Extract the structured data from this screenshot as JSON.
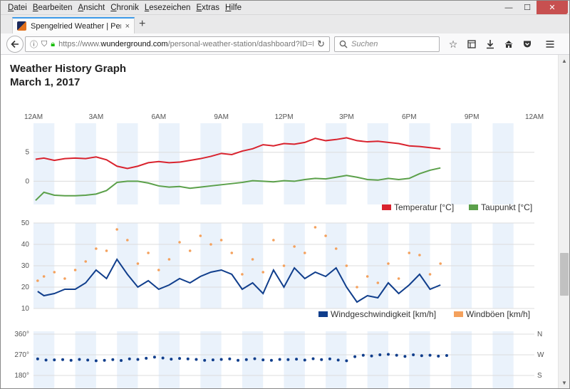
{
  "browser": {
    "menus": [
      "Datei",
      "Bearbeiten",
      "Ansicht",
      "Chronik",
      "Lesezeichen",
      "Extras",
      "Hilfe"
    ],
    "menu_underline": [
      "D",
      "B",
      "A",
      "C",
      "L",
      "E",
      "H"
    ],
    "window_controls": {
      "minimize": "—",
      "maximize": "☐",
      "close": "✕"
    },
    "tab_title": "Spengelried Weather | Pers",
    "tab_close": "×",
    "new_tab": "+",
    "url_prefix": "https://www.",
    "url_host": "wunderground.com",
    "url_path": "/personal-weather-station/dashboard?ID=IN",
    "search_placeholder": "Suchen"
  },
  "page": {
    "title": "Weather History Graph",
    "date": "March 1, 2017"
  },
  "chart_data": [
    {
      "type": "line",
      "x_ticks": [
        "12AM",
        "3AM",
        "6AM",
        "9AM",
        "12PM",
        "3PM",
        "6PM",
        "9PM",
        "12AM"
      ],
      "x_unit": "hours",
      "xlim": [
        0,
        24
      ],
      "ylim": [
        -4,
        10
      ],
      "y_ticks": [
        0,
        5
      ],
      "grid": true,
      "legend": "bottom-right",
      "series": [
        {
          "name": "Temperatur [°C]",
          "color": "#d9232e",
          "x": [
            0.1,
            0.5,
            1,
            1.5,
            2,
            2.5,
            3,
            3.5,
            4,
            4.5,
            5,
            5.5,
            6,
            6.5,
            7,
            7.5,
            8,
            8.5,
            9,
            9.5,
            10,
            10.5,
            11,
            11.5,
            12,
            12.5,
            13,
            13.5,
            14,
            14.5,
            15,
            15.5,
            16,
            16.5,
            17,
            17.5,
            18,
            18.5,
            19,
            19.5
          ],
          "values": [
            3.8,
            4.0,
            3.6,
            3.9,
            4.0,
            3.9,
            4.2,
            3.7,
            2.6,
            2.2,
            2.6,
            3.2,
            3.4,
            3.2,
            3.3,
            3.6,
            3.9,
            4.3,
            4.8,
            4.6,
            5.2,
            5.6,
            6.3,
            6.1,
            6.5,
            6.4,
            6.7,
            7.4,
            7.0,
            7.2,
            7.5,
            7.0,
            6.8,
            6.9,
            6.7,
            6.5,
            6.1,
            6.0,
            5.8,
            5.6
          ]
        },
        {
          "name": "Taupunkt [°C]",
          "color": "#5ba04a",
          "x": [
            0.1,
            0.5,
            1,
            1.5,
            2,
            2.5,
            3,
            3.5,
            4,
            4.5,
            5,
            5.5,
            6,
            6.5,
            7,
            7.5,
            8,
            8.5,
            9,
            9.5,
            10,
            10.5,
            11,
            11.5,
            12,
            12.5,
            13,
            13.5,
            14,
            14.5,
            15,
            15.5,
            16,
            16.5,
            17,
            17.5,
            18,
            18.5,
            19,
            19.5
          ],
          "values": [
            -3.3,
            -1.9,
            -2.4,
            -2.5,
            -2.5,
            -2.4,
            -2.2,
            -1.6,
            -0.2,
            0.0,
            0.0,
            -0.3,
            -0.8,
            -1.0,
            -0.9,
            -1.2,
            -1.0,
            -0.8,
            -0.6,
            -0.4,
            -0.2,
            0.1,
            0.0,
            -0.1,
            0.1,
            0.0,
            0.3,
            0.5,
            0.4,
            0.7,
            1.0,
            0.7,
            0.3,
            0.2,
            0.5,
            0.3,
            0.5,
            1.3,
            1.9,
            2.3
          ]
        }
      ]
    },
    {
      "type": "scatter",
      "x_ticks": [
        "12AM",
        "3AM",
        "6AM",
        "9AM",
        "12PM",
        "3PM",
        "6PM",
        "9PM",
        "12AM"
      ],
      "xlim": [
        0,
        24
      ],
      "ylim": [
        10,
        50
      ],
      "y_ticks": [
        10,
        20,
        30,
        40,
        50
      ],
      "grid": true,
      "legend": "bottom-right",
      "series": [
        {
          "name": "Windgeschwindigkeit [km/h]",
          "color": "#103e8c",
          "style": "line",
          "x": [
            0.2,
            0.5,
            1,
            1.5,
            2,
            2.5,
            3,
            3.5,
            4,
            4.5,
            5,
            5.5,
            6,
            6.5,
            7,
            7.5,
            8,
            8.5,
            9,
            9.5,
            10,
            10.5,
            11,
            11.5,
            12,
            12.5,
            13,
            13.5,
            14,
            14.5,
            15,
            15.5,
            16,
            16.5,
            17,
            17.5,
            18,
            18.5,
            19,
            19.5
          ],
          "values": [
            18,
            16,
            17,
            19,
            19,
            22,
            28,
            24,
            33,
            26,
            20,
            23,
            19,
            21,
            24,
            22,
            25,
            27,
            28,
            26,
            19,
            22,
            17,
            28,
            20,
            29,
            24,
            27,
            25,
            29,
            20,
            13,
            16,
            15,
            22,
            17,
            21,
            26,
            19,
            21
          ]
        },
        {
          "name": "Windböen [km/h]",
          "color": "#f4a15d",
          "style": "dots",
          "x": [
            0.2,
            0.5,
            1,
            1.5,
            2,
            2.5,
            3,
            3.5,
            4,
            4.5,
            5,
            5.5,
            6,
            6.5,
            7,
            7.5,
            8,
            8.5,
            9,
            9.5,
            10,
            10.5,
            11,
            11.5,
            12,
            12.5,
            13,
            13.5,
            14,
            14.5,
            15,
            15.5,
            16,
            16.5,
            17,
            17.5,
            18,
            18.5,
            19,
            19.5
          ],
          "values": [
            23,
            25,
            27,
            24,
            28,
            32,
            38,
            37,
            47,
            42,
            31,
            36,
            28,
            33,
            41,
            37,
            44,
            40,
            42,
            36,
            26,
            33,
            27,
            42,
            30,
            39,
            36,
            48,
            44,
            38,
            30,
            20,
            25,
            22,
            31,
            24,
            36,
            35,
            26,
            31
          ]
        }
      ]
    },
    {
      "type": "scatter",
      "y_ticks_left": [
        "360°",
        "270°",
        "180°"
      ],
      "y_ticks_right": [
        "N",
        "W",
        "S"
      ],
      "ylim": [
        180,
        360
      ],
      "xlim": [
        0,
        24
      ],
      "grid": true,
      "series": [
        {
          "name": "",
          "color": "#103e8c",
          "x": [
            0.2,
            0.6,
            1,
            1.4,
            1.8,
            2.2,
            2.6,
            3,
            3.4,
            3.8,
            4.2,
            4.6,
            5,
            5.4,
            5.8,
            6.2,
            6.6,
            7,
            7.4,
            7.8,
            8.2,
            8.6,
            9,
            9.4,
            9.8,
            10.2,
            10.6,
            11,
            11.4,
            11.8,
            12.2,
            12.6,
            13,
            13.4,
            13.8,
            14.2,
            14.6,
            15,
            15.4,
            15.8,
            16.2,
            16.6,
            17,
            17.4,
            17.8,
            18.2,
            18.6,
            19,
            19.4,
            19.8
          ],
          "values": [
            252,
            247,
            248,
            249,
            246,
            250,
            247,
            244,
            246,
            249,
            245,
            252,
            250,
            255,
            260,
            256,
            251,
            254,
            252,
            250,
            246,
            248,
            250,
            252,
            246,
            249,
            253,
            248,
            246,
            250,
            249,
            251,
            247,
            253,
            249,
            252,
            247,
            244,
            262,
            268,
            265,
            270,
            272,
            268,
            263,
            270,
            266,
            268,
            264,
            267
          ]
        }
      ]
    }
  ]
}
